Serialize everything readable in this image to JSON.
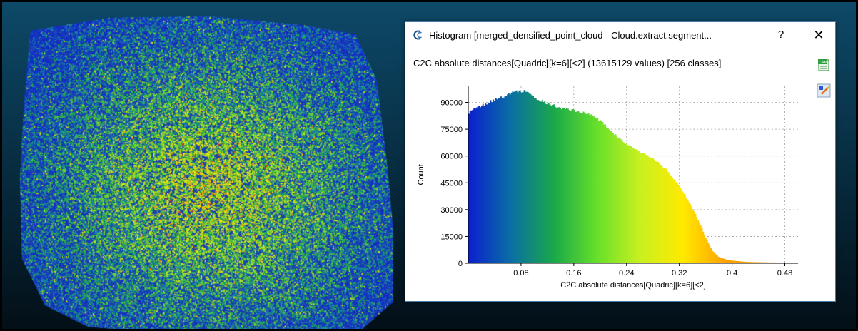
{
  "dialog": {
    "title": "Histogram [merged_densified_point_cloud - Cloud.extract.segment...",
    "help_label": "?",
    "close_label": "✕",
    "header": "C2C absolute distances[Quadric][k=6][<2] (13615129 values)  [256 classes]",
    "export_icon_text": "CSV"
  },
  "icons": {
    "app": "cloudcompare-logo-icon",
    "export": "export-csv-icon",
    "edit": "color-scale-edit-icon"
  },
  "colors": {
    "scale": [
      "#0b1fcf",
      "#0a6fa4",
      "#1aa84a",
      "#66e02a",
      "#c8f020",
      "#ffea00",
      "#ffa000"
    ],
    "background_top": "#0d4968",
    "background_bottom": "#030f17",
    "dialog_border": "#4a7aa8"
  },
  "chart_data": {
    "type": "bar",
    "title": "C2C absolute distances[Quadric][k=6][<2] (13615129 values)  [256 classes]",
    "xlabel": "C2C absolute distances[Quadric][k=6][<2]",
    "ylabel": "Count",
    "xlim": [
      0,
      0.5
    ],
    "ylim": [
      0,
      97000
    ],
    "xticks": [
      "0.08",
      "0.16",
      "0.24",
      "0.32",
      "0.4",
      "0.48"
    ],
    "yticks": [
      "0",
      "15000",
      "30000",
      "45000",
      "60000",
      "75000",
      "90000"
    ],
    "grid": true,
    "classes": 256,
    "total_values": 13615129,
    "envelope": {
      "x": [
        0,
        0.005,
        0.02,
        0.04,
        0.06,
        0.07,
        0.08,
        0.09,
        0.1,
        0.12,
        0.14,
        0.16,
        0.18,
        0.2,
        0.22,
        0.24,
        0.26,
        0.28,
        0.3,
        0.32,
        0.34,
        0.35,
        0.36,
        0.37,
        0.38,
        0.39,
        0.4,
        0.42,
        0.45,
        0.5
      ],
      "y": [
        84000,
        86000,
        88000,
        91500,
        94500,
        96000,
        96500,
        96000,
        93000,
        89500,
        87000,
        85500,
        84000,
        80000,
        73000,
        66500,
        62500,
        59000,
        52500,
        43500,
        31000,
        23500,
        14500,
        7000,
        3500,
        2200,
        1500,
        800,
        500,
        300
      ]
    }
  }
}
